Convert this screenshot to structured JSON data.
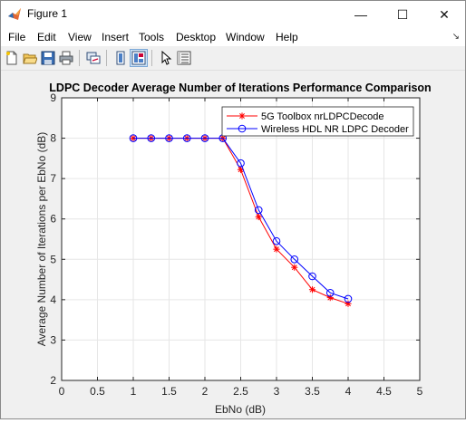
{
  "window": {
    "title": "Figure 1",
    "controls": {
      "minimize": "—",
      "maximize": "☐",
      "close": "✕"
    }
  },
  "menu": {
    "items": [
      "File",
      "Edit",
      "View",
      "Insert",
      "Tools",
      "Desktop",
      "Window",
      "Help"
    ],
    "dock_glyph": "↘"
  },
  "toolbar": {
    "buttons": [
      "new-figure",
      "open-file",
      "save-figure",
      "print-figure",
      "link-plot",
      "hide-plot-tools",
      "show-plot-tools",
      "edit-plot",
      "open-property-inspector"
    ]
  },
  "chart_data": {
    "type": "line",
    "title": "LDPC Decoder Average Number of Iterations Performance Comparison",
    "xlabel": "EbNo (dB)",
    "ylabel": "Average Number of Iterations per EbNo (dB)",
    "xlim": [
      0,
      5
    ],
    "ylim": [
      2,
      9
    ],
    "xticks": [
      "0",
      "0.5",
      "1",
      "1.5",
      "2",
      "2.5",
      "3",
      "3.5",
      "4",
      "4.5",
      "5"
    ],
    "yticks": [
      "2",
      "3",
      "4",
      "5",
      "6",
      "7",
      "8",
      "9"
    ],
    "grid": true,
    "legend_position": "top-right",
    "x": [
      1,
      1.25,
      1.5,
      1.75,
      2,
      2.25,
      2.5,
      2.75,
      3,
      3.25,
      3.5,
      3.75,
      4
    ],
    "series": [
      {
        "name": "5G Toolbox nrLDPCDecode",
        "marker": "star",
        "color": "#ff0000",
        "values": [
          8,
          8,
          8,
          8,
          8,
          8,
          7.22,
          6.05,
          5.25,
          4.8,
          4.25,
          4.05,
          3.9
        ]
      },
      {
        "name": "Wireless HDL NR LDPC Decoder",
        "marker": "circle",
        "color": "#0000ff",
        "values": [
          8,
          8,
          8,
          8,
          8,
          8,
          7.38,
          6.22,
          5.45,
          5.0,
          4.58,
          4.17,
          4.02
        ]
      }
    ]
  }
}
